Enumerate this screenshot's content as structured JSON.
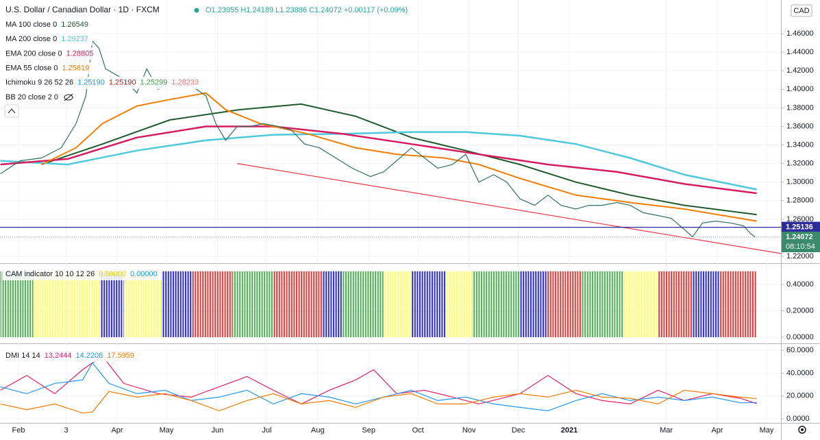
{
  "header": {
    "symbol": "U.S. Dollar / Canadian Dollar · 1D · FXCM",
    "ohlc": "O1.23955 H1.24189 L1.23886 C1.24072 +0.00117 (+0.09%)"
  },
  "chart_data": [
    {
      "type": "line",
      "currency": "CAD",
      "close": {
        "color": "#2f6f5e",
        "x": [
          -11,
          1,
          14,
          26,
          35,
          41,
          45,
          49,
          53,
          60,
          66,
          72,
          78,
          85,
          91,
          97,
          105,
          114,
          120,
          126,
          133,
          141,
          149,
          158,
          166,
          174,
          183,
          193,
          203,
          214,
          222,
          230,
          239,
          247,
          255,
          264,
          272,
          280,
          289,
          297,
          305,
          314,
          322,
          330,
          339,
          347,
          355,
          364,
          372,
          380,
          389,
          397,
          405,
          410,
          416,
          424,
          433,
          441,
          445,
          448
        ],
        "values": [
          1.309,
          1.323,
          1.326,
          1.337,
          1.363,
          1.393,
          1.452,
          1.444,
          1.422,
          1.415,
          1.408,
          1.396,
          1.422,
          1.4,
          1.408,
          1.404,
          1.404,
          1.393,
          1.363,
          1.345,
          1.36,
          1.36,
          1.363,
          1.36,
          1.356,
          1.341,
          1.337,
          1.326,
          1.315,
          1.306,
          1.311,
          1.323,
          1.337,
          1.326,
          1.315,
          1.319,
          1.33,
          1.3,
          1.308,
          1.3,
          1.282,
          1.275,
          1.286,
          1.275,
          1.271,
          1.275,
          1.275,
          1.278,
          1.275,
          1.267,
          1.264,
          1.261,
          1.249,
          1.241,
          1.256,
          1.258,
          1.256,
          1.253,
          1.245,
          1.24072
        ]
      },
      "series": [
        {
          "name": "MA 100 close 0",
          "color": "#1e5a2a",
          "last": 1.26549,
          "x": [
            14,
            51,
            92,
            134,
            172,
            205,
            239,
            272,
            305,
            339,
            372,
            405,
            449
          ],
          "values": [
            1.319,
            1.341,
            1.367,
            1.378,
            1.384,
            1.371,
            1.348,
            1.334,
            1.319,
            1.3,
            1.286,
            1.275,
            1.265
          ]
        },
        {
          "name": "MA 200 close 0",
          "color": "#4cc9dc",
          "last": 1.29237,
          "x": [
            -11,
            30,
            72,
            114,
            155,
            197,
            239,
            272,
            305,
            339,
            372,
            405,
            449
          ],
          "values": [
            1.323,
            1.319,
            1.334,
            1.345,
            1.351,
            1.352,
            1.354,
            1.354,
            1.35,
            1.341,
            1.326,
            1.308,
            1.292
          ]
        },
        {
          "name": "EMA 200 close 0",
          "color": "#d81b60",
          "last": 1.28805,
          "x": [
            -11,
            30,
            72,
            114,
            155,
            197,
            239,
            280,
            322,
            364,
            405,
            449
          ],
          "values": [
            1.319,
            1.325,
            1.348,
            1.36,
            1.36,
            1.352,
            1.341,
            1.33,
            1.319,
            1.311,
            1.298,
            1.288
          ]
        },
        {
          "name": "EMA 55 close 0",
          "color": "#f57c00",
          "last": 1.25819,
          "x": [
            14,
            35,
            51,
            72,
            92,
            114,
            126,
            147,
            176,
            205,
            230,
            259,
            280,
            305,
            339,
            372,
            405,
            449
          ],
          "values": [
            1.319,
            1.337,
            1.363,
            1.382,
            1.389,
            1.396,
            1.378,
            1.363,
            1.352,
            1.337,
            1.33,
            1.326,
            1.319,
            1.304,
            1.286,
            1.278,
            1.271,
            1.258
          ]
        }
      ],
      "indicators": [
        {
          "name": "Ichimoku 9 26 52 26",
          "colors": [
            "#2196f3",
            "#b71c1c",
            "#43a047",
            "#e57373"
          ],
          "labels": [
            "1.25190",
            "1.25190",
            "1.25299",
            "1.28233"
          ]
        },
        {
          "name": "BB 20 close 2 0"
        }
      ],
      "trendline": {
        "color": "#f23645",
        "x": [
          133,
          464
        ],
        "values": [
          1.32,
          1.223
        ]
      },
      "hline": {
        "color": "#2b2b9c",
        "value": 1.25136
      },
      "last_price": {
        "color": "#3a8a6c",
        "value": 1.24072,
        "countdown": "08:10:54"
      },
      "ylim": [
        1.2134,
        1.4925
      ],
      "yticks": [
        {
          "value": 1.22,
          "label": "1.22000"
        },
        {
          "value": 1.24,
          "label": "1.24000"
        },
        {
          "value": 1.26,
          "label": "1.26000"
        },
        {
          "value": 1.28,
          "label": "1.28000"
        },
        {
          "value": 1.3,
          "label": "1.30000"
        },
        {
          "value": 1.32,
          "label": "1.32000"
        },
        {
          "value": 1.34,
          "label": "1.34000"
        },
        {
          "value": 1.36,
          "label": "1.36000"
        },
        {
          "value": 1.38,
          "label": "1.38000"
        },
        {
          "value": 1.4,
          "label": "1.40000"
        },
        {
          "value": 1.42,
          "label": "1.42000"
        },
        {
          "value": 1.44,
          "label": "1.44000"
        },
        {
          "value": 1.46,
          "label": "1.46000"
        }
      ]
    },
    {
      "type": "bar",
      "title": "CAM indicator 10 10 12 26",
      "labels": [
        "0.50000",
        "0.00000"
      ],
      "label_colors": [
        "#e6d800",
        "#2196f3"
      ],
      "runs": [
        {
          "color": "#4caf50",
          "x": [
            -11,
            9
          ],
          "value": 0.5
        },
        {
          "color": "#ffff66",
          "x": [
            9,
            50
          ],
          "value": 0.5
        },
        {
          "color": "#2a2ad8",
          "x": [
            50,
            64
          ],
          "value": 0.5
        },
        {
          "color": "#ffff66",
          "x": [
            64,
            87
          ],
          "value": 0.5
        },
        {
          "color": "#2a2ad8",
          "x": [
            87,
            106
          ],
          "value": 0.5
        },
        {
          "color": "#e53935",
          "x": [
            106,
            130
          ],
          "value": 0.5
        },
        {
          "color": "#4caf50",
          "x": [
            130,
            155
          ],
          "value": 0.5
        },
        {
          "color": "#e53935",
          "x": [
            155,
            185
          ],
          "value": 0.5
        },
        {
          "color": "#2a2ad8",
          "x": [
            185,
            197
          ],
          "value": 0.5
        },
        {
          "color": "#4caf50",
          "x": [
            197,
            222
          ],
          "value": 0.5
        },
        {
          "color": "#ffff66",
          "x": [
            222,
            239
          ],
          "value": 0.5
        },
        {
          "color": "#2a2ad8",
          "x": [
            239,
            260
          ],
          "value": 0.5
        },
        {
          "color": "#ffff66",
          "x": [
            260,
            276
          ],
          "value": 0.5
        },
        {
          "color": "#4caf50",
          "x": [
            276,
            305
          ],
          "value": 0.5
        },
        {
          "color": "#2a2ad8",
          "x": [
            305,
            322
          ],
          "value": 0.5
        },
        {
          "color": "#e53935",
          "x": [
            322,
            343
          ],
          "value": 0.5
        },
        {
          "color": "#4caf50",
          "x": [
            343,
            368
          ],
          "value": 0.5
        },
        {
          "color": "#ffff66",
          "x": [
            368,
            389
          ],
          "value": 0.5
        },
        {
          "color": "#e53935",
          "x": [
            389,
            410
          ],
          "value": 0.5
        },
        {
          "color": "#2a2ad8",
          "x": [
            410,
            426
          ],
          "value": 0.5
        },
        {
          "color": "#e53935",
          "x": [
            426,
            449
          ],
          "value": 0.5
        }
      ],
      "ylim": [
        -0.042,
        0.551
      ],
      "yticks": [
        {
          "value": 0,
          "label": "0.00000"
        },
        {
          "value": 0.2,
          "label": "0.20000"
        },
        {
          "value": 0.4,
          "label": "0.40000"
        }
      ]
    },
    {
      "type": "line",
      "title": "DMI 14 14",
      "series": [
        {
          "color": "#e91e63",
          "last": 13.2444,
          "x": [
            -11,
            5,
            22,
            39,
            51,
            64,
            85,
            105,
            122,
            139,
            155,
            172,
            189,
            205,
            216,
            230,
            247,
            264,
            280,
            305,
            322,
            339,
            355,
            372,
            389,
            405,
            422,
            439,
            449
          ],
          "values": [
            25,
            38,
            22,
            43,
            55,
            31,
            22,
            19,
            28,
            37,
            25,
            13,
            25,
            34,
            43,
            22,
            25,
            19,
            13,
            22,
            38,
            22,
            16,
            13,
            25,
            16,
            22,
            18,
            13.2444
          ]
        },
        {
          "color": "#2196f3",
          "last": 14.2206,
          "x": [
            -11,
            5,
            22,
            39,
            45,
            55,
            72,
            89,
            105,
            122,
            139,
            155,
            172,
            189,
            205,
            222,
            239,
            255,
            272,
            289,
            305,
            322,
            339,
            355,
            372,
            389,
            405,
            422,
            439,
            449
          ],
          "values": [
            28,
            22,
            31,
            34,
            49,
            31,
            22,
            25,
            16,
            19,
            25,
            13,
            22,
            19,
            13,
            19,
            25,
            16,
            19,
            13,
            10,
            7,
            16,
            22,
            16,
            19,
            16,
            19,
            14,
            14.2206
          ]
        },
        {
          "color": "#f57c00",
          "last": 17.5959,
          "x": [
            -11,
            5,
            22,
            39,
            45,
            55,
            72,
            89,
            105,
            122,
            139,
            155,
            172,
            189,
            205,
            222,
            239,
            255,
            272,
            289,
            305,
            322,
            339,
            355,
            372,
            389,
            405,
            422,
            439,
            449
          ],
          "values": [
            13,
            8,
            13,
            5,
            6,
            24,
            19,
            22,
            16,
            7,
            16,
            22,
            13,
            16,
            10,
            19,
            22,
            13,
            13,
            19,
            22,
            19,
            25,
            19,
            18,
            13,
            25,
            22,
            19,
            17.5959
          ]
        }
      ],
      "ylim": [
        -3.6,
        65.5
      ],
      "yticks": [
        {
          "value": 0,
          "label": "0.0000"
        },
        {
          "value": 20,
          "label": "20.0000"
        },
        {
          "value": 40,
          "label": "40.0000"
        },
        {
          "value": 60,
          "label": "60.0000"
        }
      ],
      "xlim": [
        -11.25,
        463.75
      ],
      "xticks": [
        {
          "value": 0,
          "label": "Feb"
        },
        {
          "value": 29,
          "label": "3"
        },
        {
          "value": 60,
          "label": "Apr"
        },
        {
          "value": 90,
          "label": "May"
        },
        {
          "value": 121,
          "label": "Jun"
        },
        {
          "value": 151,
          "label": "Jul"
        },
        {
          "value": 182,
          "label": "Aug"
        },
        {
          "value": 213,
          "label": "Sep"
        },
        {
          "value": 243,
          "label": "Oct"
        },
        {
          "value": 274,
          "label": "Nov"
        },
        {
          "value": 304,
          "label": "Dec"
        },
        {
          "value": 335,
          "label": "2021"
        },
        {
          "value": 394,
          "label": "Mar"
        },
        {
          "value": 425,
          "label": "Apr"
        },
        {
          "value": 455,
          "label": "May"
        }
      ]
    }
  ]
}
